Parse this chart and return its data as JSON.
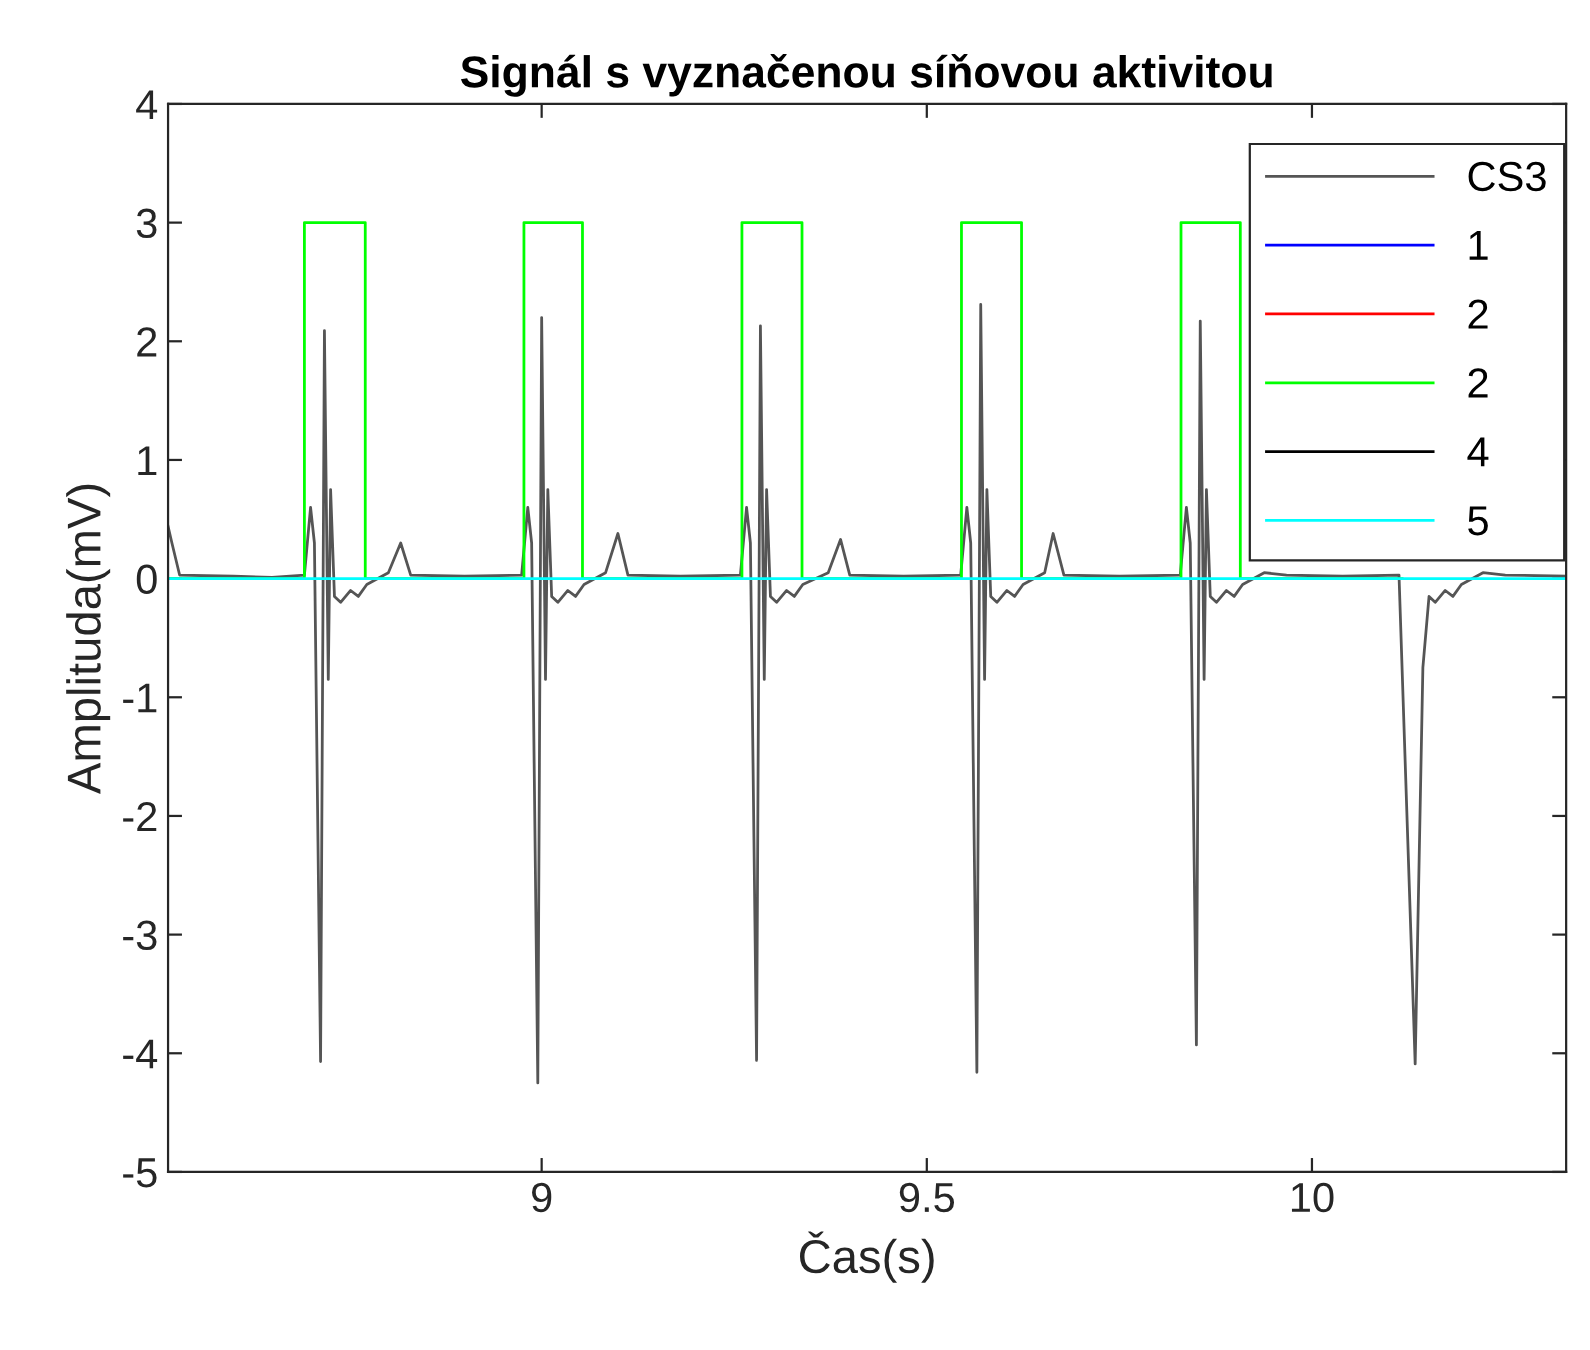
{
  "chart_data": {
    "type": "line",
    "title": "Signál s vyznačenou síňovou aktivitou",
    "xlabel": "Čas(s)",
    "ylabel": "Amplituda(mV)",
    "xlim": [
      8.515,
      10.33
    ],
    "xticks": [
      9,
      9.5,
      10
    ],
    "ylim": [
      -5,
      4
    ],
    "yticks": [
      -5,
      -4,
      -3,
      -2,
      -1,
      0,
      1,
      2,
      3,
      4
    ],
    "grid": false,
    "legend": "top right",
    "line_style": "solid",
    "marker": "none",
    "series": [
      {
        "name": "CS3",
        "color": "#555555",
        "x": [
          8.515,
          8.52,
          8.53,
          8.6,
          8.65,
          8.692,
          8.7,
          8.705,
          8.713,
          8.718,
          8.723,
          8.726,
          8.731,
          8.739,
          8.752,
          8.762,
          8.773,
          8.801,
          8.817,
          8.83,
          8.9,
          8.974,
          8.982,
          8.987,
          8.995,
          9.0,
          9.005,
          9.008,
          9.013,
          9.021,
          9.034,
          9.044,
          9.055,
          9.083,
          9.099,
          9.112,
          9.18,
          9.258,
          9.266,
          9.271,
          9.279,
          9.284,
          9.289,
          9.292,
          9.297,
          9.305,
          9.318,
          9.328,
          9.339,
          9.372,
          9.388,
          9.4,
          9.47,
          9.544,
          9.552,
          9.557,
          9.565,
          9.57,
          9.575,
          9.578,
          9.583,
          9.591,
          9.604,
          9.614,
          9.625,
          9.653,
          9.664,
          9.678,
          9.75,
          9.829,
          9.837,
          9.842,
          9.85,
          9.855,
          9.86,
          9.863,
          9.868,
          9.876,
          9.889,
          9.899,
          9.91,
          9.938,
          9.967,
          10.04,
          10.113,
          10.134,
          10.144,
          10.152,
          10.16,
          10.173,
          10.183,
          10.194,
          10.222,
          10.251,
          10.33
        ],
        "values": [
          0.44,
          0.3,
          0.03,
          0.02,
          0.01,
          0.03,
          0.6,
          0.3,
          -4.07,
          2.09,
          -0.85,
          0.75,
          -0.15,
          -0.2,
          -0.1,
          -0.15,
          -0.05,
          0.05,
          0.3,
          0.03,
          0.02,
          0.03,
          0.6,
          0.3,
          -4.25,
          2.2,
          -0.85,
          0.75,
          -0.15,
          -0.2,
          -0.1,
          -0.15,
          -0.05,
          0.05,
          0.38,
          0.03,
          0.02,
          0.03,
          0.6,
          0.3,
          -4.06,
          2.13,
          -0.85,
          0.75,
          -0.15,
          -0.2,
          -0.1,
          -0.15,
          -0.05,
          0.05,
          0.33,
          0.03,
          0.02,
          0.03,
          0.6,
          0.3,
          -4.16,
          2.31,
          -0.85,
          0.75,
          -0.15,
          -0.2,
          -0.1,
          -0.15,
          -0.05,
          0.05,
          0.38,
          0.03,
          0.02,
          0.03,
          0.6,
          0.3,
          -3.93,
          2.17,
          -0.85,
          0.75,
          -0.15,
          -0.2,
          -0.1,
          -0.15,
          -0.05,
          0.05,
          0.03,
          0.02,
          0.03,
          -4.09,
          -0.75,
          -0.15,
          -0.2,
          -0.1,
          -0.15,
          -0.05,
          0.05,
          0.03,
          0.02
        ]
      },
      {
        "name": "1",
        "color": "#0000ff"
      },
      {
        "name": "2",
        "color": "#ff0000"
      },
      {
        "name": "2",
        "color": "#00ff00",
        "x": [
          8.515,
          8.692,
          8.692,
          8.771,
          8.771,
          8.977,
          8.977,
          9.053,
          9.053,
          9.26,
          9.26,
          9.338,
          9.338,
          9.545,
          9.545,
          9.623,
          9.623,
          9.83,
          9.83,
          9.907,
          9.907,
          10.117
        ],
        "values": [
          0,
          0,
          3,
          3,
          0,
          0,
          3,
          3,
          0,
          0,
          3,
          3,
          0,
          0,
          3,
          3,
          0,
          0,
          3,
          3,
          0,
          0
        ]
      },
      {
        "name": "4",
        "color": "#000000"
      },
      {
        "name": "5",
        "color": "#00ffff",
        "x": [
          8.515,
          10.33
        ],
        "values": [
          0,
          0
        ]
      }
    ]
  }
}
